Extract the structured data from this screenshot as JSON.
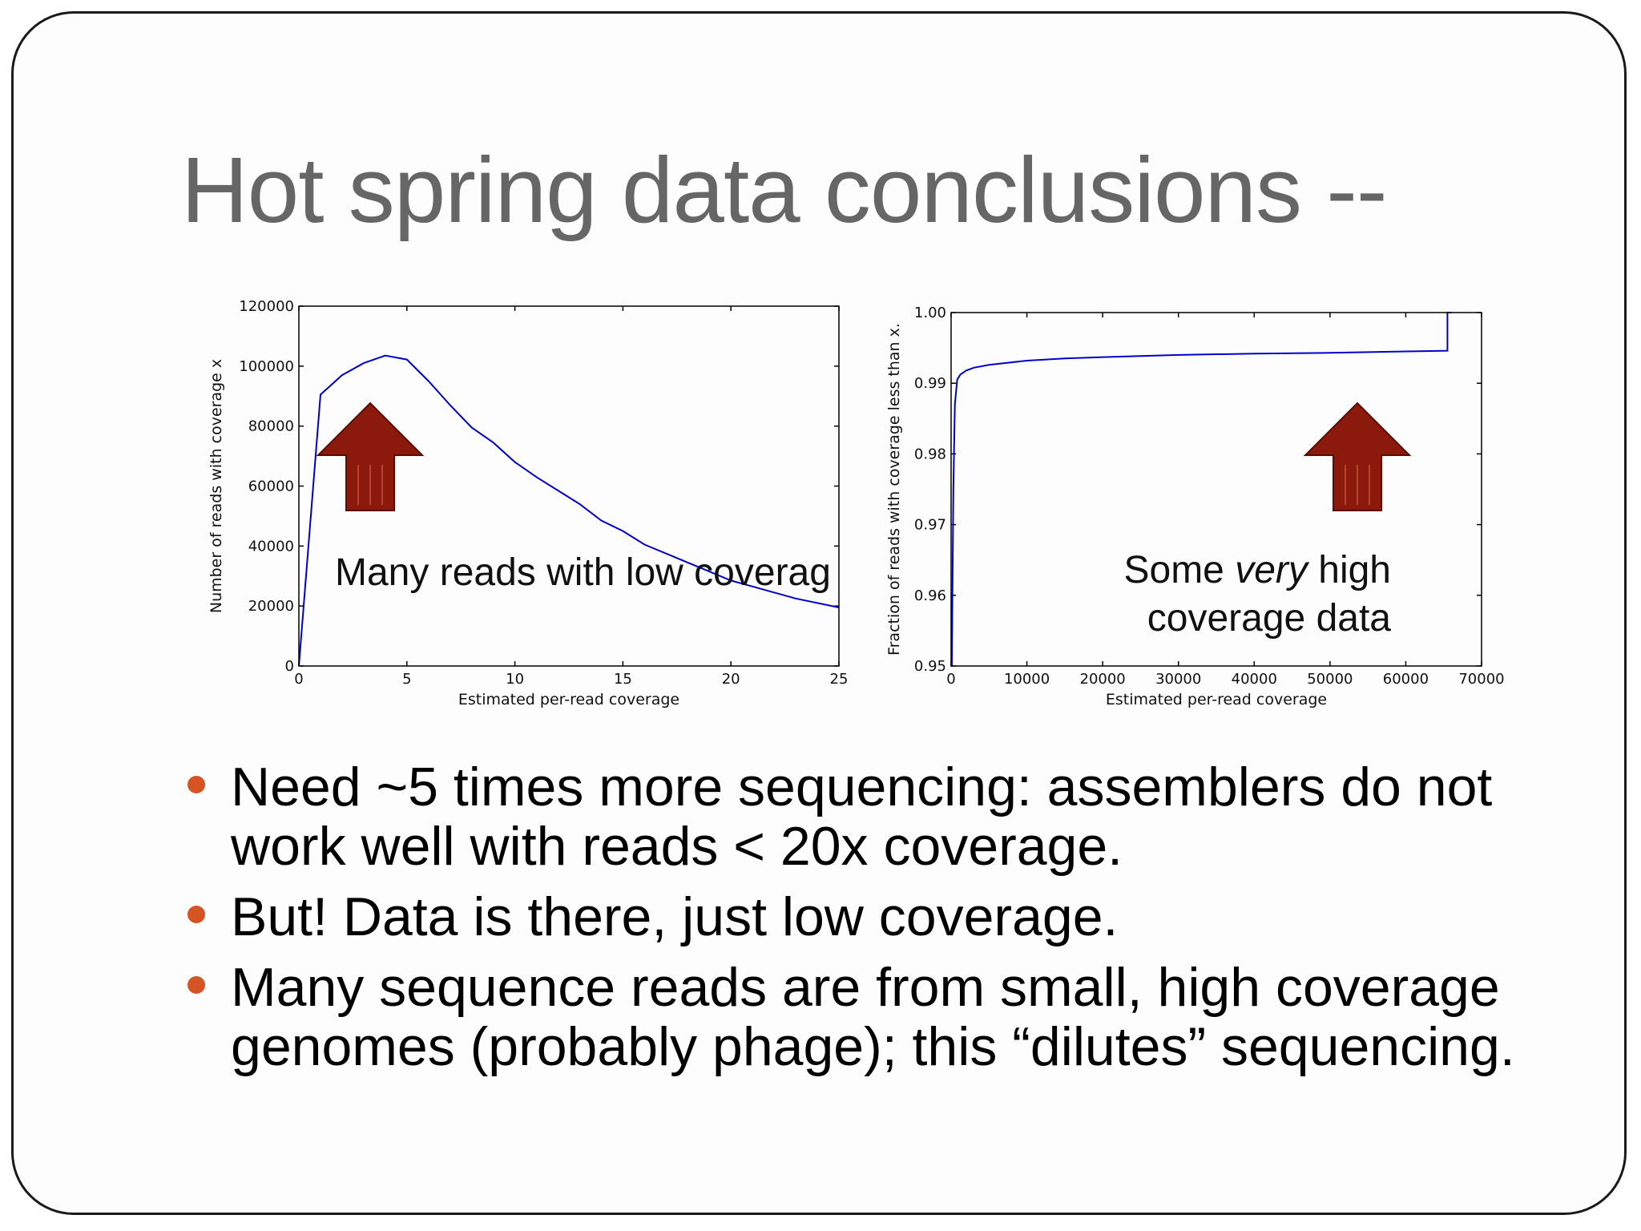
{
  "title": "Hot spring data conclusions --",
  "bullets": [
    "Need ~5 times more sequencing: assemblers do not work well with reads < 20x coverage.",
    "But! Data is there, just low coverage.",
    "Many sequence reads are from small, high coverage genomes (probably phage); this “dilutes” sequencing."
  ],
  "annotations": {
    "left": "Many reads with low coverag",
    "right_line1_pre": "Some ",
    "right_line1_em": "very",
    "right_line1_post": " high",
    "right_line2": "coverage data"
  },
  "icons": [
    "up-arrow-icon",
    "up-arrow-icon"
  ],
  "colors": {
    "title": "#666666",
    "bullet": "#d65424",
    "series": "#0000cc",
    "arrow": "#8b1a0c"
  },
  "chart_data": [
    {
      "type": "line",
      "title": "",
      "xlabel": "Estimated per-read coverage",
      "ylabel": "Number of reads with coverage x",
      "xlim": [
        0,
        25
      ],
      "ylim": [
        0,
        120000
      ],
      "xticks": [
        0,
        5,
        10,
        15,
        20,
        25
      ],
      "yticks": [
        0,
        20000,
        40000,
        60000,
        80000,
        100000,
        120000
      ],
      "grid": false,
      "series": [
        {
          "x": [
            0,
            1,
            2,
            3,
            4,
            5,
            6,
            7,
            8,
            9,
            10,
            11,
            12,
            13,
            14,
            15,
            16,
            17,
            18,
            19,
            20,
            21,
            22,
            23,
            24,
            25
          ],
          "y": [
            0,
            90500,
            97000,
            101000,
            103500,
            102200,
            95000,
            87000,
            79500,
            74500,
            68000,
            63000,
            58500,
            54000,
            48500,
            45000,
            40500,
            37500,
            34500,
            31500,
            28500,
            26500,
            24500,
            22500,
            21000,
            19500
          ]
        }
      ]
    },
    {
      "type": "line",
      "title": "",
      "xlabel": "Estimated per-read coverage",
      "ylabel": "Fraction of reads with coverage less than x.",
      "xlim": [
        0,
        70000
      ],
      "ylim": [
        0.95,
        1.0
      ],
      "xticks": [
        0,
        10000,
        20000,
        30000,
        40000,
        50000,
        60000,
        70000
      ],
      "yticks": [
        0.95,
        0.96,
        0.97,
        0.98,
        0.99,
        1.0
      ],
      "ytick_labels": [
        "0.95",
        "0.96",
        "0.97",
        "0.98",
        "0.99",
        "1.00"
      ],
      "grid": false,
      "series": [
        {
          "x": [
            0,
            100,
            300,
            500,
            800,
            1200,
            2000,
            3000,
            5000,
            10000,
            15000,
            20000,
            30000,
            40000,
            50000,
            60000,
            65500,
            65500,
            66000
          ],
          "y": [
            0.95,
            0.95,
            0.975,
            0.987,
            0.9905,
            0.9912,
            0.9918,
            0.9922,
            0.9926,
            0.9932,
            0.9935,
            0.9937,
            0.994,
            0.9942,
            0.9943,
            0.9945,
            0.9946,
            1.0,
            1.0
          ]
        }
      ]
    }
  ]
}
